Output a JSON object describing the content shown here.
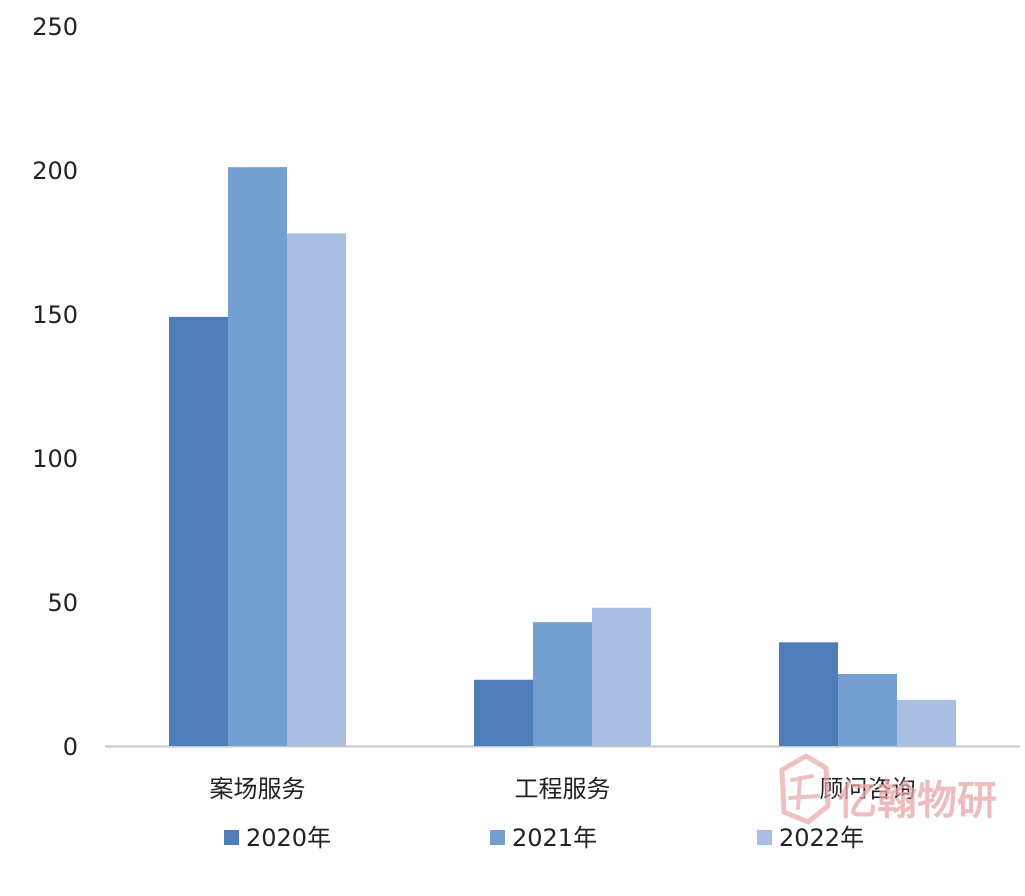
{
  "chart_data": {
    "type": "bar",
    "categories": [
      "案场服务",
      "工程服务",
      "顾问咨询"
    ],
    "series": [
      {
        "name": "2020年",
        "values": [
          149,
          23,
          36
        ],
        "color": "#4f7db8"
      },
      {
        "name": "2021年",
        "values": [
          201,
          43,
          25
        ],
        "color": "#749fd0"
      },
      {
        "name": "2022年",
        "values": [
          178,
          48,
          16
        ],
        "color": "#a8bfe2"
      }
    ],
    "ylim": [
      0,
      250
    ],
    "yticks": [
      0,
      50,
      100,
      150,
      200,
      250
    ],
    "title": "",
    "xlabel": "",
    "ylabel": "",
    "grid": false,
    "legend_position": "bottom"
  },
  "watermark": {
    "text": "亿翰物研",
    "color": "#e9a6a6"
  }
}
